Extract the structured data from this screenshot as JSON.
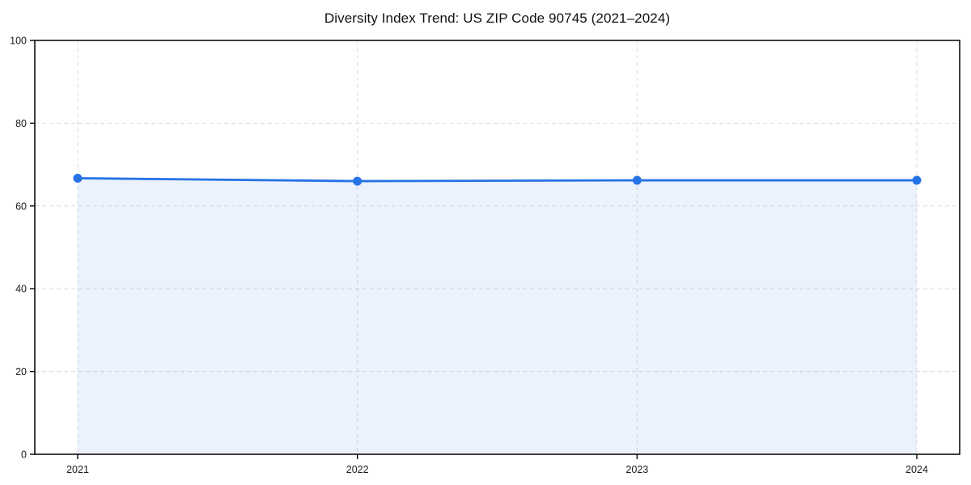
{
  "figure": {
    "title": "Diversity Index Trend: US ZIP Code 90745 (2021–2024)"
  },
  "chart_data": {
    "type": "area",
    "title": "Diversity Index Trend: US ZIP Code 90745 (2021–2024)",
    "categories": [
      "2021",
      "2022",
      "2023",
      "2024"
    ],
    "series": [
      {
        "name": "Diversity Index",
        "values": [
          66.7,
          66.0,
          66.2,
          66.2
        ]
      }
    ],
    "xlabel": "",
    "ylabel": "",
    "ylim": [
      0,
      100
    ],
    "yticks": [
      0,
      20,
      40,
      60,
      80,
      100
    ],
    "grid": "on",
    "grid_style": "dashed",
    "legend": "none",
    "line_color": "#2673e5",
    "marker_color": "#2673e5",
    "fill_color": "#2673e5",
    "fill_opacity": 0.09,
    "grid_color": "#dcdcdc",
    "axis_color": "#000000",
    "tick_label_color": "#1a1a1a"
  }
}
